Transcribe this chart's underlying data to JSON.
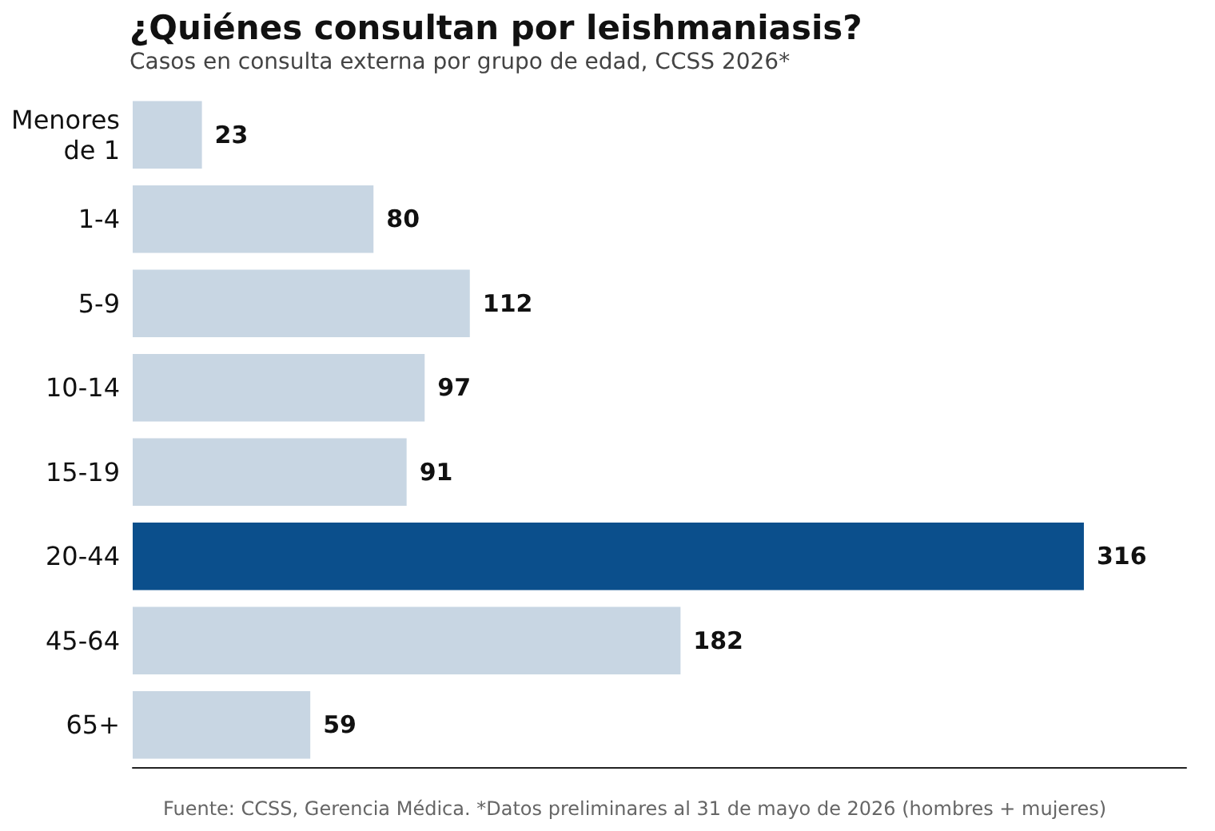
{
  "chart_data": {
    "type": "bar",
    "orientation": "horizontal",
    "title": "¿Quiénes consultan por leishmaniasis?",
    "subtitle": "Casos en consulta externa por grupo de edad, CCSS 2026*",
    "categories": [
      "Menores de 1",
      "1-4",
      "5-9",
      "10-14",
      "15-19",
      "20-44",
      "45-64",
      "65+"
    ],
    "values": [
      23,
      80,
      112,
      97,
      91,
      316,
      182,
      59
    ],
    "colors": [
      "#c8d6e3",
      "#c8d6e3",
      "#c8d6e3",
      "#c8d6e3",
      "#c8d6e3",
      "#0b4f8c",
      "#c8d6e3",
      "#c8d6e3"
    ],
    "data_labels": true,
    "tick_labels": "y",
    "grid": false,
    "annotations": [
      "Fuente: CCSS, Gerencia Médica. *Datos preliminares al 31 de mayo de 2026 (hombres + mujeres)"
    ]
  }
}
